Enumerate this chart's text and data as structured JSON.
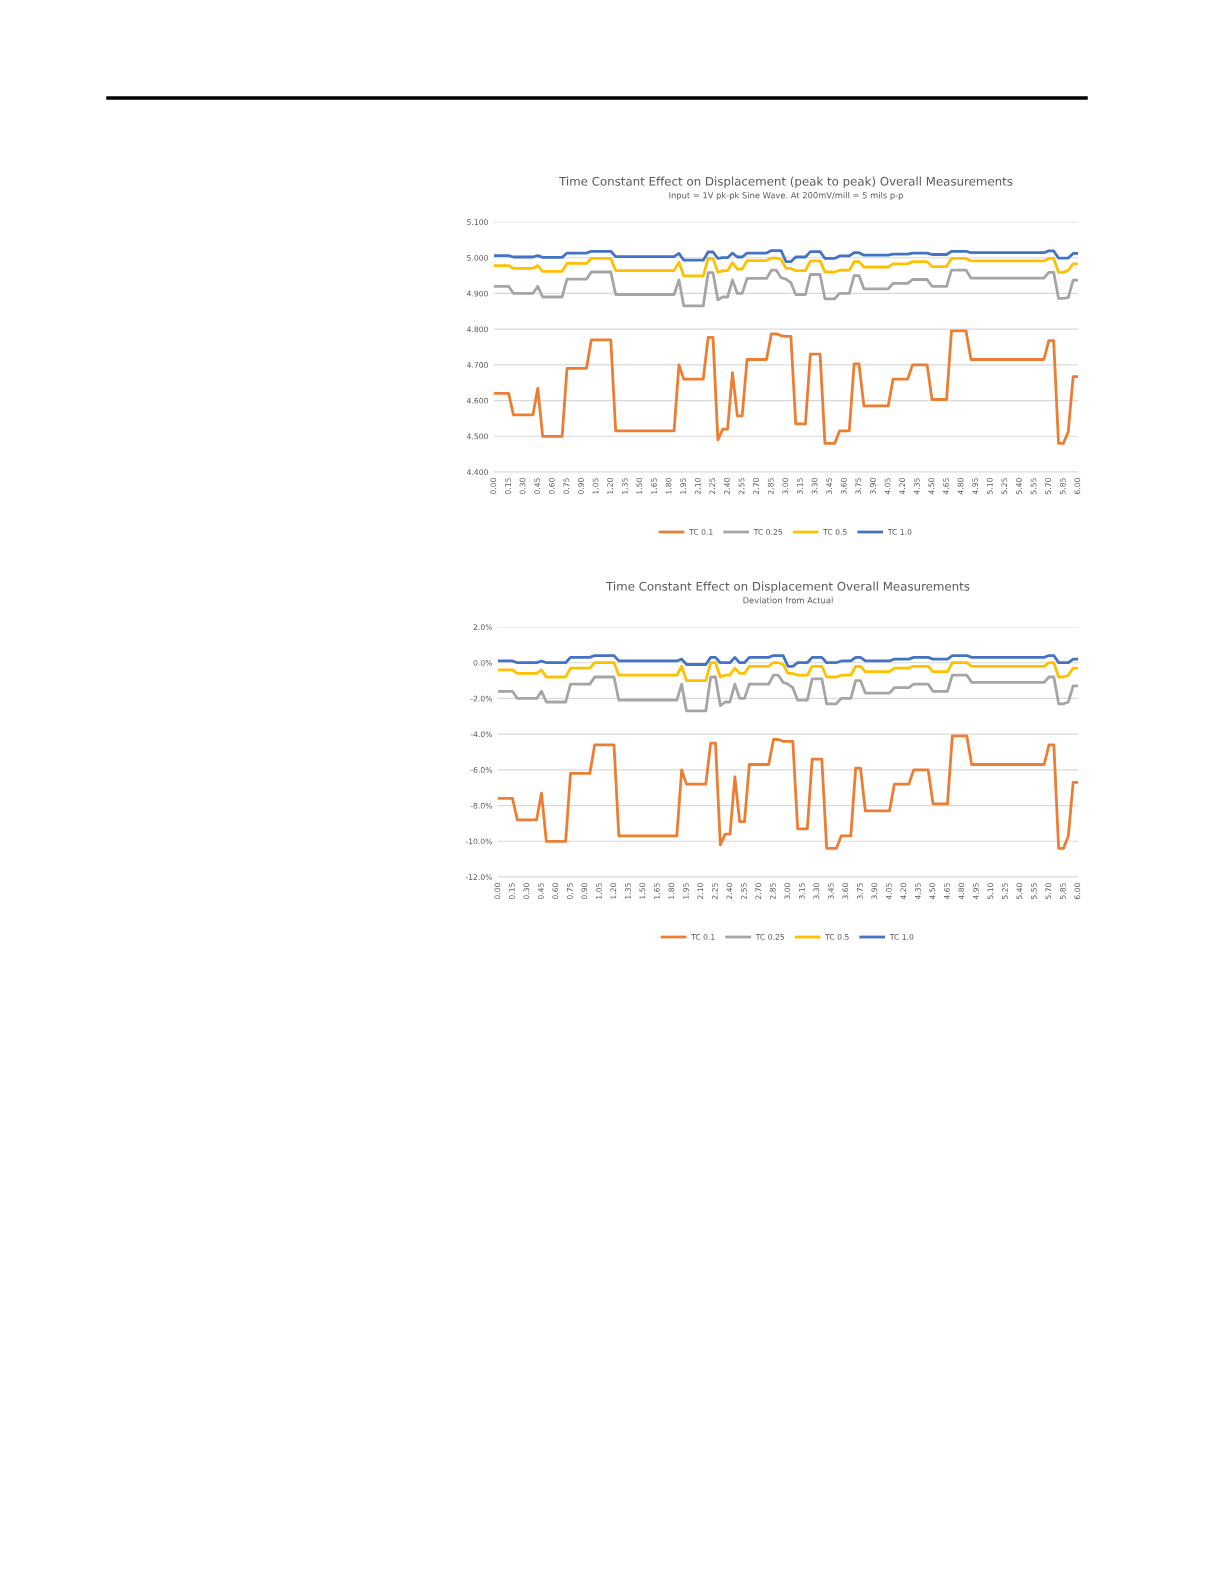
{
  "chart_data": [
    {
      "type": "line",
      "title": "Time Constant Effect on Displacement (peak to peak) Overall Measurements",
      "subtitle": "Input = 1V pk-pk Sine Wave. At 200mV/mill = 5 mils p-p",
      "x": [
        0,
        0.15,
        0.2,
        0.4,
        0.45,
        0.5,
        0.7,
        0.75,
        0.95,
        1.0,
        1.2,
        1.25,
        1.85,
        1.9,
        1.95,
        2.15,
        2.2,
        2.25,
        2.3,
        2.35,
        2.4,
        2.45,
        2.5,
        2.55,
        2.6,
        2.8,
        2.85,
        2.9,
        2.95,
        3.0,
        3.05,
        3.1,
        3.2,
        3.25,
        3.35,
        3.4,
        3.5,
        3.55,
        3.65,
        3.7,
        3.75,
        3.8,
        4.05,
        4.1,
        4.25,
        4.3,
        4.45,
        4.5,
        4.65,
        4.7,
        4.85,
        4.9,
        5.65,
        5.7,
        5.75,
        5.8,
        5.85,
        5.9,
        5.95,
        6.0
      ],
      "series": [
        {
          "name": "TC 0.1",
          "color": "#ed7d31",
          "values": [
            4.62,
            4.62,
            4.56,
            4.56,
            4.635,
            4.5,
            4.5,
            4.69,
            4.69,
            4.77,
            4.77,
            4.515,
            4.515,
            4.7,
            4.66,
            4.66,
            4.777,
            4.777,
            4.49,
            4.52,
            4.52,
            4.678,
            4.557,
            4.557,
            4.715,
            4.715,
            4.787,
            4.787,
            4.782,
            4.78,
            4.78,
            4.535,
            4.535,
            4.73,
            4.73,
            4.48,
            4.48,
            4.515,
            4.515,
            4.703,
            4.703,
            4.585,
            4.585,
            4.66,
            4.66,
            4.7,
            4.7,
            4.603,
            4.603,
            4.795,
            4.795,
            4.715,
            4.715,
            4.768,
            4.768,
            4.48,
            4.48,
            4.513,
            4.667,
            4.667
          ]
        },
        {
          "name": "TC 0.25",
          "color": "#a5a5a5",
          "values": [
            4.92,
            4.92,
            4.9,
            4.9,
            4.92,
            4.89,
            4.89,
            4.94,
            4.94,
            4.96,
            4.96,
            4.897,
            4.897,
            4.938,
            4.865,
            4.865,
            4.958,
            4.958,
            4.882,
            4.89,
            4.89,
            4.938,
            4.9,
            4.9,
            4.942,
            4.942,
            4.965,
            4.965,
            4.944,
            4.94,
            4.93,
            4.897,
            4.897,
            4.953,
            4.953,
            4.885,
            4.885,
            4.9,
            4.9,
            4.95,
            4.95,
            4.913,
            4.913,
            4.928,
            4.928,
            4.939,
            4.939,
            4.92,
            4.92,
            4.965,
            4.965,
            4.943,
            4.943,
            4.959,
            4.959,
            4.886,
            4.886,
            4.888,
            4.937,
            4.937
          ]
        },
        {
          "name": "TC 0.5",
          "color": "#ffc000",
          "values": [
            4.978,
            4.978,
            4.97,
            4.97,
            4.978,
            4.962,
            4.962,
            4.984,
            4.984,
            4.998,
            4.998,
            4.964,
            4.964,
            4.988,
            4.949,
            4.949,
            4.998,
            4.998,
            4.959,
            4.964,
            4.964,
            4.986,
            4.968,
            4.968,
            4.992,
            4.992,
            4.999,
            4.999,
            4.995,
            4.97,
            4.97,
            4.964,
            4.964,
            4.991,
            4.991,
            4.96,
            4.96,
            4.965,
            4.965,
            4.989,
            4.989,
            4.974,
            4.974,
            4.983,
            4.983,
            4.989,
            4.989,
            4.975,
            4.975,
            4.998,
            4.998,
            4.991,
            4.991,
            4.998,
            4.998,
            4.959,
            4.959,
            4.965,
            4.983,
            4.983
          ]
        },
        {
          "name": "TC 1.0",
          "color": "#4472c4",
          "values": [
            5.006,
            5.006,
            5.002,
            5.002,
            5.006,
            5.001,
            5.001,
            5.013,
            5.013,
            5.018,
            5.018,
            5.003,
            5.003,
            5.012,
            4.993,
            4.993,
            5.016,
            5.016,
            4.998,
            5.0,
            5.0,
            5.013,
            5.002,
            5.002,
            5.013,
            5.013,
            5.02,
            5.02,
            5.02,
            4.989,
            4.989,
            5.002,
            5.002,
            5.017,
            5.017,
            4.998,
            4.998,
            5.005,
            5.005,
            5.014,
            5.014,
            5.007,
            5.007,
            5.01,
            5.01,
            5.013,
            5.013,
            5.009,
            5.009,
            5.018,
            5.018,
            5.014,
            5.014,
            5.019,
            5.019,
            4.999,
            4.999,
            4.999,
            5.012,
            5.012
          ]
        }
      ],
      "xlim": [
        0,
        6
      ],
      "xticks": [
        {
          "value": 0,
          "label": "0.00"
        },
        {
          "value": 0.15,
          "label": "0.15"
        },
        {
          "value": 0.3,
          "label": "0.30"
        },
        {
          "value": 0.45,
          "label": "0.45"
        },
        {
          "value": 0.6,
          "label": "0.60"
        },
        {
          "value": 0.75,
          "label": "0.75"
        },
        {
          "value": 0.9,
          "label": "0.90"
        },
        {
          "value": 1.05,
          "label": "1.05"
        },
        {
          "value": 1.2,
          "label": "1.20"
        },
        {
          "value": 1.35,
          "label": "1.35"
        },
        {
          "value": 1.5,
          "label": "1.50"
        },
        {
          "value": 1.65,
          "label": "1.65"
        },
        {
          "value": 1.8,
          "label": "1.80"
        },
        {
          "value": 1.95,
          "label": "1.95"
        },
        {
          "value": 2.1,
          "label": "2.10"
        },
        {
          "value": 2.25,
          "label": "2.25"
        },
        {
          "value": 2.4,
          "label": "2.40"
        },
        {
          "value": 2.55,
          "label": "2.55"
        },
        {
          "value": 2.7,
          "label": "2.70"
        },
        {
          "value": 2.85,
          "label": "2.85"
        },
        {
          "value": 3,
          "label": "3.00"
        },
        {
          "value": 3.15,
          "label": "3.15"
        },
        {
          "value": 3.3,
          "label": "3.30"
        },
        {
          "value": 3.45,
          "label": "3.45"
        },
        {
          "value": 3.6,
          "label": "3.60"
        },
        {
          "value": 3.75,
          "label": "3.75"
        },
        {
          "value": 3.9,
          "label": "3.90"
        },
        {
          "value": 4.05,
          "label": "4.05"
        },
        {
          "value": 4.2,
          "label": "4.20"
        },
        {
          "value": 4.35,
          "label": "4.35"
        },
        {
          "value": 4.5,
          "label": "4.50"
        },
        {
          "value": 4.65,
          "label": "4.65"
        },
        {
          "value": 4.8,
          "label": "4.80"
        },
        {
          "value": 4.95,
          "label": "4.95"
        },
        {
          "value": 5.1,
          "label": "5.10"
        },
        {
          "value": 5.25,
          "label": "5.25"
        },
        {
          "value": 5.4,
          "label": "5.40"
        },
        {
          "value": 5.55,
          "label": "5.55"
        },
        {
          "value": 5.7,
          "label": "5.70"
        },
        {
          "value": 5.85,
          "label": "5.85"
        },
        {
          "value": 6,
          "label": "6.00"
        }
      ],
      "ylim": [
        4.4,
        5.1
      ],
      "yticks": [
        {
          "value": 4.4,
          "label": "4.400"
        },
        {
          "value": 4.5,
          "label": "4.500"
        },
        {
          "value": 4.6,
          "label": "4.600"
        },
        {
          "value": 4.7,
          "label": "4.700"
        },
        {
          "value": 4.8,
          "label": "4.800"
        },
        {
          "value": 4.9,
          "label": "4.900"
        },
        {
          "value": 5.0,
          "label": "5.000"
        },
        {
          "value": 5.1,
          "label": "5.100"
        }
      ],
      "grid": "y",
      "legend": "bottom",
      "marker": "none",
      "line_style": "solid"
    },
    {
      "type": "line",
      "title": "Time Constant Effect on Displacement Overall Measurements",
      "subtitle": "Deviation from Actual",
      "x": [
        0,
        0.15,
        0.2,
        0.4,
        0.45,
        0.5,
        0.7,
        0.75,
        0.95,
        1.0,
        1.2,
        1.25,
        1.85,
        1.9,
        1.95,
        2.15,
        2.2,
        2.25,
        2.3,
        2.35,
        2.4,
        2.45,
        2.5,
        2.55,
        2.6,
        2.8,
        2.85,
        2.9,
        2.95,
        3.0,
        3.05,
        3.1,
        3.2,
        3.25,
        3.35,
        3.4,
        3.5,
        3.55,
        3.65,
        3.7,
        3.75,
        3.8,
        4.05,
        4.1,
        4.25,
        4.3,
        4.45,
        4.5,
        4.65,
        4.7,
        4.85,
        4.9,
        5.65,
        5.7,
        5.75,
        5.8,
        5.85,
        5.9,
        5.95,
        6.0
      ],
      "series": [
        {
          "name": "TC 0.1",
          "color": "#ed7d31",
          "values": [
            -7.6,
            -7.6,
            -8.8,
            -8.8,
            -7.3,
            -10.0,
            -10.0,
            -6.2,
            -6.2,
            -4.6,
            -4.6,
            -9.7,
            -9.7,
            -6.0,
            -6.8,
            -6.8,
            -4.5,
            -4.5,
            -10.2,
            -9.6,
            -9.6,
            -6.4,
            -8.9,
            -8.9,
            -5.7,
            -5.7,
            -4.3,
            -4.3,
            -4.4,
            -4.4,
            -4.4,
            -9.3,
            -9.3,
            -5.4,
            -5.4,
            -10.4,
            -10.4,
            -9.7,
            -9.7,
            -5.9,
            -5.9,
            -8.3,
            -8.3,
            -6.8,
            -6.8,
            -6.0,
            -6.0,
            -7.9,
            -7.9,
            -4.1,
            -4.1,
            -5.7,
            -5.7,
            -4.6,
            -4.6,
            -10.4,
            -10.4,
            -9.7,
            -6.7,
            -6.7
          ]
        },
        {
          "name": "TC 0.25",
          "color": "#a5a5a5",
          "values": [
            -1.6,
            -1.6,
            -2.0,
            -2.0,
            -1.6,
            -2.2,
            -2.2,
            -1.2,
            -1.2,
            -0.8,
            -0.8,
            -2.1,
            -2.1,
            -1.2,
            -2.7,
            -2.7,
            -0.8,
            -0.8,
            -2.4,
            -2.2,
            -2.2,
            -1.2,
            -2.0,
            -2.0,
            -1.2,
            -1.2,
            -0.7,
            -0.7,
            -1.1,
            -1.2,
            -1.4,
            -2.1,
            -2.1,
            -0.9,
            -0.9,
            -2.3,
            -2.3,
            -2.0,
            -2.0,
            -1.0,
            -1.0,
            -1.7,
            -1.7,
            -1.4,
            -1.4,
            -1.2,
            -1.2,
            -1.6,
            -1.6,
            -0.7,
            -0.7,
            -1.1,
            -1.1,
            -0.8,
            -0.8,
            -2.3,
            -2.3,
            -2.2,
            -1.3,
            -1.3
          ]
        },
        {
          "name": "TC 0.5",
          "color": "#ffc000",
          "values": [
            -0.4,
            -0.4,
            -0.6,
            -0.6,
            -0.4,
            -0.8,
            -0.8,
            -0.3,
            -0.3,
            0.0,
            0.0,
            -0.7,
            -0.7,
            -0.2,
            -1.0,
            -1.0,
            0.0,
            0.0,
            -0.8,
            -0.7,
            -0.7,
            -0.3,
            -0.6,
            -0.6,
            -0.2,
            -0.2,
            0.0,
            0.0,
            -0.1,
            -0.6,
            -0.6,
            -0.7,
            -0.7,
            -0.2,
            -0.2,
            -0.8,
            -0.8,
            -0.7,
            -0.7,
            -0.2,
            -0.2,
            -0.5,
            -0.5,
            -0.3,
            -0.3,
            -0.2,
            -0.2,
            -0.5,
            -0.5,
            0.0,
            0.0,
            -0.2,
            -0.2,
            0.0,
            0.0,
            -0.8,
            -0.8,
            -0.7,
            -0.3,
            -0.3
          ]
        },
        {
          "name": "TC 1.0",
          "color": "#4472c4",
          "values": [
            0.1,
            0.1,
            0.0,
            0.0,
            0.1,
            0.0,
            0.0,
            0.3,
            0.3,
            0.4,
            0.4,
            0.1,
            0.1,
            0.2,
            -0.1,
            -0.1,
            0.3,
            0.3,
            0.0,
            0.0,
            0.0,
            0.3,
            0.0,
            0.0,
            0.3,
            0.3,
            0.4,
            0.4,
            0.4,
            -0.2,
            -0.2,
            0.0,
            0.0,
            0.3,
            0.3,
            0.0,
            0.0,
            0.1,
            0.1,
            0.3,
            0.3,
            0.1,
            0.1,
            0.2,
            0.2,
            0.3,
            0.3,
            0.2,
            0.2,
            0.4,
            0.4,
            0.3,
            0.3,
            0.4,
            0.4,
            0.0,
            0.0,
            0.0,
            0.2,
            0.2
          ]
        }
      ],
      "xlim": [
        0,
        6
      ],
      "xticks": [
        {
          "value": 0,
          "label": "0.00"
        },
        {
          "value": 0.15,
          "label": "0.15"
        },
        {
          "value": 0.3,
          "label": "0.30"
        },
        {
          "value": 0.45,
          "label": "0.45"
        },
        {
          "value": 0.6,
          "label": "0.60"
        },
        {
          "value": 0.75,
          "label": "0.75"
        },
        {
          "value": 0.9,
          "label": "0.90"
        },
        {
          "value": 1.05,
          "label": "1.05"
        },
        {
          "value": 1.2,
          "label": "1.20"
        },
        {
          "value": 1.35,
          "label": "1.35"
        },
        {
          "value": 1.5,
          "label": "1.50"
        },
        {
          "value": 1.65,
          "label": "1.65"
        },
        {
          "value": 1.8,
          "label": "1.80"
        },
        {
          "value": 1.95,
          "label": "1.95"
        },
        {
          "value": 2.1,
          "label": "2.10"
        },
        {
          "value": 2.25,
          "label": "2.25"
        },
        {
          "value": 2.4,
          "label": "2.40"
        },
        {
          "value": 2.55,
          "label": "2.55"
        },
        {
          "value": 2.7,
          "label": "2.70"
        },
        {
          "value": 2.85,
          "label": "2.85"
        },
        {
          "value": 3,
          "label": "3.00"
        },
        {
          "value": 3.15,
          "label": "3.15"
        },
        {
          "value": 3.3,
          "label": "3.30"
        },
        {
          "value": 3.45,
          "label": "3.45"
        },
        {
          "value": 3.6,
          "label": "3.60"
        },
        {
          "value": 3.75,
          "label": "3.75"
        },
        {
          "value": 3.9,
          "label": "3.90"
        },
        {
          "value": 4.05,
          "label": "4.05"
        },
        {
          "value": 4.2,
          "label": "4.20"
        },
        {
          "value": 4.35,
          "label": "4.35"
        },
        {
          "value": 4.5,
          "label": "4.50"
        },
        {
          "value": 4.65,
          "label": "4.65"
        },
        {
          "value": 4.8,
          "label": "4.80"
        },
        {
          "value": 4.95,
          "label": "4.95"
        },
        {
          "value": 5.1,
          "label": "5.10"
        },
        {
          "value": 5.25,
          "label": "5.25"
        },
        {
          "value": 5.4,
          "label": "5.40"
        },
        {
          "value": 5.55,
          "label": "5.55"
        },
        {
          "value": 5.7,
          "label": "5.70"
        },
        {
          "value": 5.85,
          "label": "5.85"
        },
        {
          "value": 6,
          "label": "6.00"
        }
      ],
      "ylim": [
        -12,
        2
      ],
      "yticks": [
        {
          "value": -12,
          "label": "-12.0%"
        },
        {
          "value": -10,
          "label": "-10.0%"
        },
        {
          "value": -8,
          "label": "-8.0%"
        },
        {
          "value": -6,
          "label": "-6.0%"
        },
        {
          "value": -4,
          "label": "-4.0%"
        },
        {
          "value": -2,
          "label": "-2.0%"
        },
        {
          "value": 0,
          "label": "0.0%"
        },
        {
          "value": 2,
          "label": "2.0%"
        }
      ],
      "grid": "y",
      "legend": "bottom",
      "marker": "none",
      "line_style": "solid"
    }
  ]
}
